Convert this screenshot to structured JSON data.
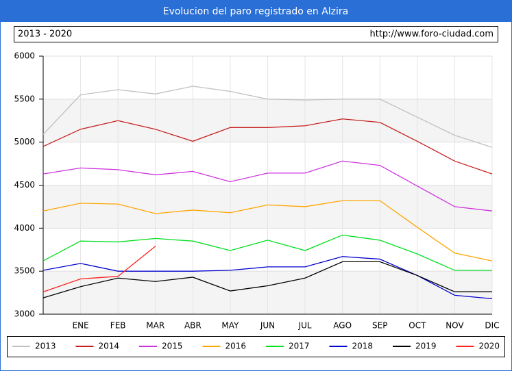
{
  "chart_data": {
    "type": "line",
    "title": "Evolucion del paro registrado en Alzira",
    "subtitle": "2013 - 2020",
    "source": "http://www.foro-ciudad.com",
    "categories": [
      null,
      "ENE",
      "FEB",
      "MAR",
      "ABR",
      "MAY",
      "JUN",
      "JUL",
      "AGO",
      "SEP",
      "OCT",
      "NOV",
      "DIC"
    ],
    "ylim": [
      3000,
      6000
    ],
    "yticks": [
      3000,
      3500,
      4000,
      4500,
      5000,
      5500,
      6000
    ],
    "grid": true,
    "legend": "bottom",
    "series": [
      {
        "name": "2013",
        "color": "#c0c0c0",
        "values": [
          5090,
          5550,
          5610,
          5560,
          5650,
          5590,
          5500,
          5490,
          5500,
          5500,
          5290,
          5080,
          4940
        ]
      },
      {
        "name": "2014",
        "color": "#c62020",
        "values": [
          4950,
          5150,
          5250,
          5150,
          5010,
          5170,
          5170,
          5190,
          5270,
          5230,
          5010,
          4780,
          4630
        ]
      },
      {
        "name": "2015",
        "color": "#cc33dd",
        "values": [
          4630,
          4700,
          4680,
          4620,
          4660,
          4540,
          4640,
          4640,
          4780,
          4730,
          4490,
          4250,
          4200
        ]
      },
      {
        "name": "2016",
        "color": "#ffa500",
        "values": [
          4200,
          4290,
          4280,
          4170,
          4210,
          4180,
          4270,
          4250,
          4320,
          4320,
          4010,
          3710,
          3620
        ]
      },
      {
        "name": "2017",
        "color": "#00e020",
        "values": [
          3620,
          3850,
          3840,
          3880,
          3850,
          3740,
          3860,
          3740,
          3920,
          3860,
          3700,
          3510,
          3510
        ]
      },
      {
        "name": "2018",
        "color": "#0000cc",
        "values": [
          3510,
          3590,
          3500,
          3500,
          3500,
          3510,
          3550,
          3550,
          3670,
          3640,
          3450,
          3220,
          3180
        ]
      },
      {
        "name": "2019",
        "color": "#000000",
        "values": [
          3190,
          3320,
          3420,
          3380,
          3430,
          3270,
          3330,
          3420,
          3610,
          3610,
          3450,
          3260,
          3260
        ]
      },
      {
        "name": "2020",
        "color": "#ff2020",
        "values": [
          3260,
          3410,
          3440,
          3790,
          null,
          null,
          null,
          null,
          null,
          null,
          null,
          null,
          null
        ]
      }
    ]
  }
}
